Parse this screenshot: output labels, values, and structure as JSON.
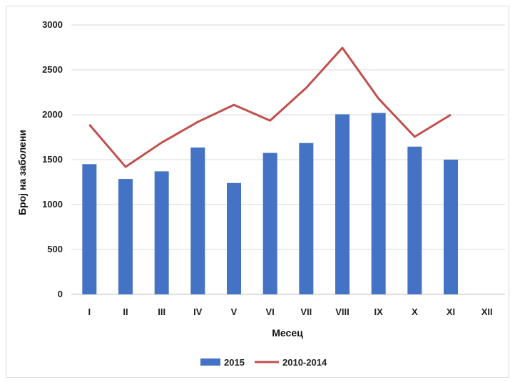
{
  "chart_data": {
    "type": "bar",
    "title": "",
    "xlabel": "Месец",
    "ylabel": "Број на заболени",
    "categories": [
      "I",
      "II",
      "III",
      "IV",
      "V",
      "VI",
      "VII",
      "VIII",
      "IX",
      "X",
      "XI",
      "XII"
    ],
    "ylim": [
      0,
      3000
    ],
    "yticks": [
      "0",
      "500",
      "1000",
      "1500",
      "2000",
      "2500",
      "3000"
    ],
    "grid": true,
    "legend_position": "bottom",
    "series": [
      {
        "name": "2015",
        "kind": "bar",
        "color": "#4472c4",
        "values": [
          1450,
          1285,
          1370,
          1635,
          1240,
          1575,
          1685,
          2005,
          2020,
          1645,
          1500,
          null
        ]
      },
      {
        "name": "2010-2014",
        "kind": "line",
        "color": "#c0504d",
        "values": [
          1890,
          1420,
          1690,
          1920,
          2110,
          1935,
          2300,
          2745,
          2180,
          1755,
          2000,
          null
        ]
      }
    ]
  }
}
